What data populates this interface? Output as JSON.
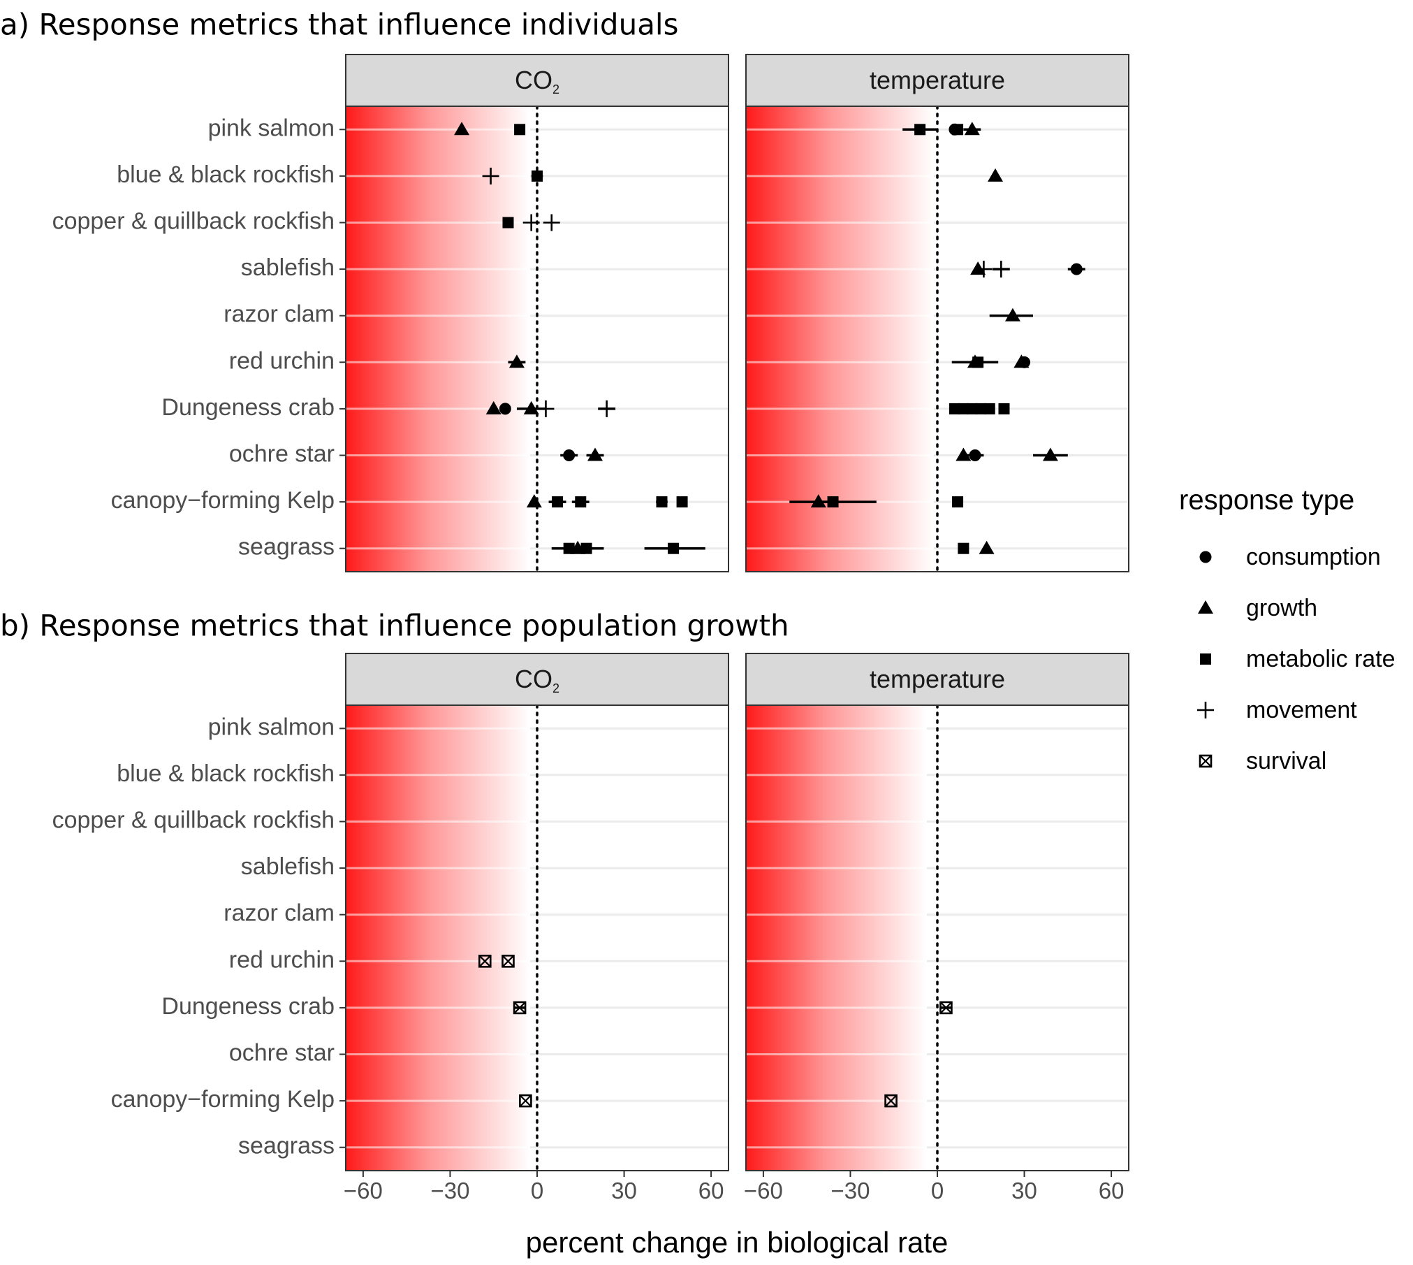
{
  "chart_data": [
    {
      "type": "scatter",
      "panel_title": "a) Response metrics that influence individuals",
      "species": [
        "pink salmon",
        "blue & black rockfish",
        "copper & quillback rockfish",
        "sablefish",
        "razor clam",
        "red urchin",
        "Dungeness crab",
        "ochre star",
        "canopy−forming Kelp",
        "seagrass"
      ],
      "facets": [
        {
          "strip": "CO",
          "strip_sub": "2",
          "points": [
            {
              "species": "pink salmon",
              "type": "growth",
              "x": -26
            },
            {
              "species": "pink salmon",
              "type": "metabolic rate",
              "x": -6
            },
            {
              "species": "blue & black rockfish",
              "type": "movement",
              "x": -16
            },
            {
              "species": "blue & black rockfish",
              "type": "metabolic rate",
              "x": 0,
              "xmin": -2,
              "xmax": 2
            },
            {
              "species": "copper & quillback rockfish",
              "type": "metabolic rate",
              "x": -10
            },
            {
              "species": "copper & quillback rockfish",
              "type": "movement",
              "x": -2
            },
            {
              "species": "copper & quillback rockfish",
              "type": "movement",
              "x": 5
            },
            {
              "species": "red urchin",
              "type": "growth",
              "x": -7,
              "xmin": -10,
              "xmax": -4
            },
            {
              "species": "Dungeness crab",
              "type": "growth",
              "x": -15
            },
            {
              "species": "Dungeness crab",
              "type": "consumption",
              "x": -11
            },
            {
              "species": "Dungeness crab",
              "type": "growth",
              "x": -2,
              "xmin": -7,
              "xmax": 3
            },
            {
              "species": "Dungeness crab",
              "type": "movement",
              "x": 3
            },
            {
              "species": "Dungeness crab",
              "type": "movement",
              "x": 24,
              "xmin": 21,
              "xmax": 27
            },
            {
              "species": "ochre star",
              "type": "consumption",
              "x": 11,
              "xmin": 8,
              "xmax": 14
            },
            {
              "species": "ochre star",
              "type": "growth",
              "x": 20,
              "xmin": 17,
              "xmax": 23
            },
            {
              "species": "canopy−forming Kelp",
              "type": "growth",
              "x": -1
            },
            {
              "species": "canopy−forming Kelp",
              "type": "metabolic rate",
              "x": 7,
              "xmin": 4,
              "xmax": 10
            },
            {
              "species": "canopy−forming Kelp",
              "type": "metabolic rate",
              "x": 15,
              "xmin": 12,
              "xmax": 18
            },
            {
              "species": "canopy−forming Kelp",
              "type": "metabolic rate",
              "x": 43,
              "xmin": 41,
              "xmax": 45
            },
            {
              "species": "canopy−forming Kelp",
              "type": "metabolic rate",
              "x": 50
            },
            {
              "species": "seagrass",
              "type": "metabolic rate",
              "x": 11,
              "xmin": 5,
              "xmax": 23
            },
            {
              "species": "seagrass",
              "type": "growth",
              "x": 14
            },
            {
              "species": "seagrass",
              "type": "metabolic rate",
              "x": 17
            },
            {
              "species": "seagrass",
              "type": "metabolic rate",
              "x": 47,
              "xmin": 37,
              "xmax": 58
            }
          ]
        },
        {
          "strip": "temperature",
          "strip_sub": "",
          "points": [
            {
              "species": "pink salmon",
              "type": "metabolic rate",
              "x": -6,
              "xmin": -12,
              "xmax": 0
            },
            {
              "species": "pink salmon",
              "type": "consumption",
              "x": 6,
              "xmin": 4,
              "xmax": 8
            },
            {
              "species": "pink salmon",
              "type": "metabolic rate",
              "x": 7
            },
            {
              "species": "pink salmon",
              "type": "growth",
              "x": 12,
              "xmin": 9,
              "xmax": 15
            },
            {
              "species": "blue & black rockfish",
              "type": "growth",
              "x": 20
            },
            {
              "species": "sablefish",
              "type": "growth",
              "x": 14
            },
            {
              "species": "sablefish",
              "type": "movement",
              "x": 16
            },
            {
              "species": "sablefish",
              "type": "movement",
              "x": 22,
              "xmin": 19,
              "xmax": 25
            },
            {
              "species": "sablefish",
              "type": "consumption",
              "x": 48,
              "xmin": 45,
              "xmax": 51
            },
            {
              "species": "razor clam",
              "type": "growth",
              "x": 26,
              "xmin": 18,
              "xmax": 33
            },
            {
              "species": "red urchin",
              "type": "growth",
              "x": 13
            },
            {
              "species": "red urchin",
              "type": "metabolic rate",
              "x": 14,
              "xmin": 5,
              "xmax": 21
            },
            {
              "species": "red urchin",
              "type": "growth",
              "x": 29
            },
            {
              "species": "red urchin",
              "type": "consumption",
              "x": 30
            },
            {
              "species": "Dungeness crab",
              "type": "metabolic rate",
              "x": 6
            },
            {
              "species": "Dungeness crab",
              "type": "metabolic rate",
              "x": 9
            },
            {
              "species": "Dungeness crab",
              "type": "metabolic rate",
              "x": 12
            },
            {
              "species": "Dungeness crab",
              "type": "metabolic rate",
              "x": 15
            },
            {
              "species": "Dungeness crab",
              "type": "metabolic rate",
              "x": 18
            },
            {
              "species": "Dungeness crab",
              "type": "metabolic rate",
              "x": 23
            },
            {
              "species": "ochre star",
              "type": "growth",
              "x": 9
            },
            {
              "species": "ochre star",
              "type": "consumption",
              "x": 13,
              "xmin": 10,
              "xmax": 16
            },
            {
              "species": "ochre star",
              "type": "growth",
              "x": 39,
              "xmin": 33,
              "xmax": 45
            },
            {
              "species": "canopy−forming Kelp",
              "type": "growth",
              "x": -41,
              "xmin": -51,
              "xmax": -36
            },
            {
              "species": "canopy−forming Kelp",
              "type": "metabolic rate",
              "x": -36,
              "xmin": -41,
              "xmax": -21
            },
            {
              "species": "canopy−forming Kelp",
              "type": "metabolic rate",
              "x": 7
            },
            {
              "species": "seagrass",
              "type": "metabolic rate",
              "x": 9
            },
            {
              "species": "seagrass",
              "type": "growth",
              "x": 17
            }
          ]
        }
      ]
    },
    {
      "type": "scatter",
      "panel_title": "b) Response metrics that influence population growth",
      "species": [
        "pink salmon",
        "blue & black rockfish",
        "copper & quillback rockfish",
        "sablefish",
        "razor clam",
        "red urchin",
        "Dungeness crab",
        "ochre star",
        "canopy−forming Kelp",
        "seagrass"
      ],
      "facets": [
        {
          "strip": "CO",
          "strip_sub": "2",
          "points": [
            {
              "species": "red urchin",
              "type": "survival",
              "x": -18
            },
            {
              "species": "red urchin",
              "type": "survival",
              "x": -10
            },
            {
              "species": "Dungeness crab",
              "type": "survival",
              "x": -6,
              "xmin": -8,
              "xmax": -4
            },
            {
              "species": "canopy−forming Kelp",
              "type": "survival",
              "x": -4
            }
          ]
        },
        {
          "strip": "temperature",
          "strip_sub": "",
          "points": [
            {
              "species": "Dungeness crab",
              "type": "survival",
              "x": 3,
              "xmin": 1,
              "xmax": 5
            },
            {
              "species": "canopy−forming Kelp",
              "type": "survival",
              "x": -16
            }
          ]
        }
      ]
    }
  ],
  "axis": {
    "xlabel": "percent change in biological rate",
    "xlim": [
      -66,
      66
    ],
    "xticks": [
      -60,
      -30,
      0,
      30,
      60
    ],
    "xtick_labels": [
      "−60",
      "−30",
      "0",
      "30",
      "60"
    ]
  },
  "legend": {
    "title": "response type",
    "items": [
      {
        "label": "consumption",
        "shape": "circle"
      },
      {
        "label": "growth",
        "shape": "triangle"
      },
      {
        "label": "metabolic rate",
        "shape": "square"
      },
      {
        "label": "movement",
        "shape": "plus"
      },
      {
        "label": "survival",
        "shape": "boxed-x"
      }
    ]
  },
  "colors": {
    "negative_gradient": "#ff1a1a",
    "strip_bg": "#d9d9d9",
    "grid": "#ebebeb",
    "points": "#000000"
  }
}
